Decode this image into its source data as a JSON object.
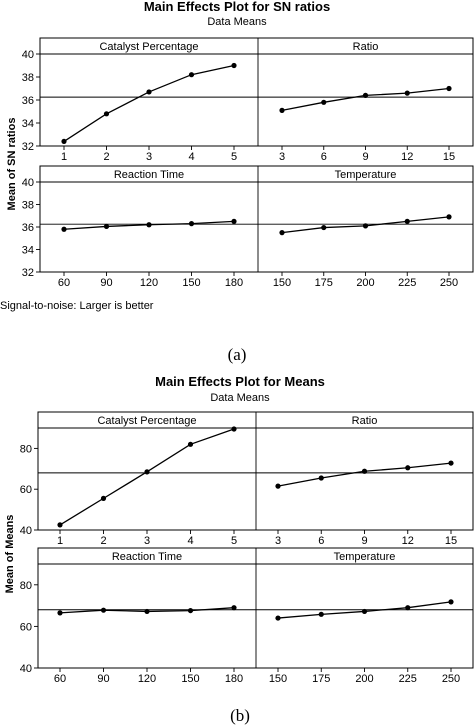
{
  "chart_data": [
    {
      "type": "line",
      "title": "Main Effects Plot for SN ratios",
      "subtitle": "Data Means",
      "ylabel": "Mean of SN ratios",
      "footnote": "Signal-to-noise: Larger is better",
      "caption": "(a)",
      "ylim": [
        32,
        40
      ],
      "yticks": [
        "32",
        "34",
        "36",
        "38",
        "40"
      ],
      "reference_mean": 36.25,
      "panels": [
        {
          "name": "Catalyst Percentage",
          "x": [
            "1",
            "2",
            "3",
            "4",
            "5"
          ],
          "y": [
            32.4,
            34.8,
            36.7,
            38.2,
            39.0
          ]
        },
        {
          "name": "Ratio",
          "x": [
            "3",
            "6",
            "9",
            "12",
            "15"
          ],
          "y": [
            35.1,
            35.8,
            36.4,
            36.6,
            37.0
          ]
        },
        {
          "name": "Reaction Time",
          "x": [
            "60",
            "90",
            "120",
            "150",
            "180"
          ],
          "y": [
            35.8,
            36.05,
            36.2,
            36.3,
            36.5
          ]
        },
        {
          "name": "Temperature",
          "x": [
            "150",
            "175",
            "200",
            "225",
            "250"
          ],
          "y": [
            35.5,
            35.95,
            36.1,
            36.5,
            36.9
          ]
        }
      ]
    },
    {
      "type": "line",
      "title": "Main Effects Plot for Means",
      "subtitle": "Data Means",
      "ylabel": "Mean of Means",
      "caption": "(b)",
      "ylim": [
        40,
        90
      ],
      "yticks": [
        "40",
        "60",
        "80"
      ],
      "reference_mean": 68,
      "panels": [
        {
          "name": "Catalyst Percentage",
          "x": [
            "1",
            "2",
            "3",
            "4",
            "5"
          ],
          "y": [
            42.5,
            55.5,
            68.5,
            82,
            89.5
          ]
        },
        {
          "name": "Ratio",
          "x": [
            "3",
            "6",
            "9",
            "12",
            "15"
          ],
          "y": [
            61.5,
            65.5,
            68.8,
            70.5,
            72.8
          ]
        },
        {
          "name": "Reaction Time",
          "x": [
            "60",
            "90",
            "120",
            "150",
            "180"
          ],
          "y": [
            66.5,
            67.8,
            67.2,
            67.6,
            69.0
          ]
        },
        {
          "name": "Temperature",
          "x": [
            "150",
            "175",
            "200",
            "225",
            "250"
          ],
          "y": [
            64.0,
            65.8,
            67.2,
            69.0,
            71.8
          ]
        }
      ]
    }
  ]
}
